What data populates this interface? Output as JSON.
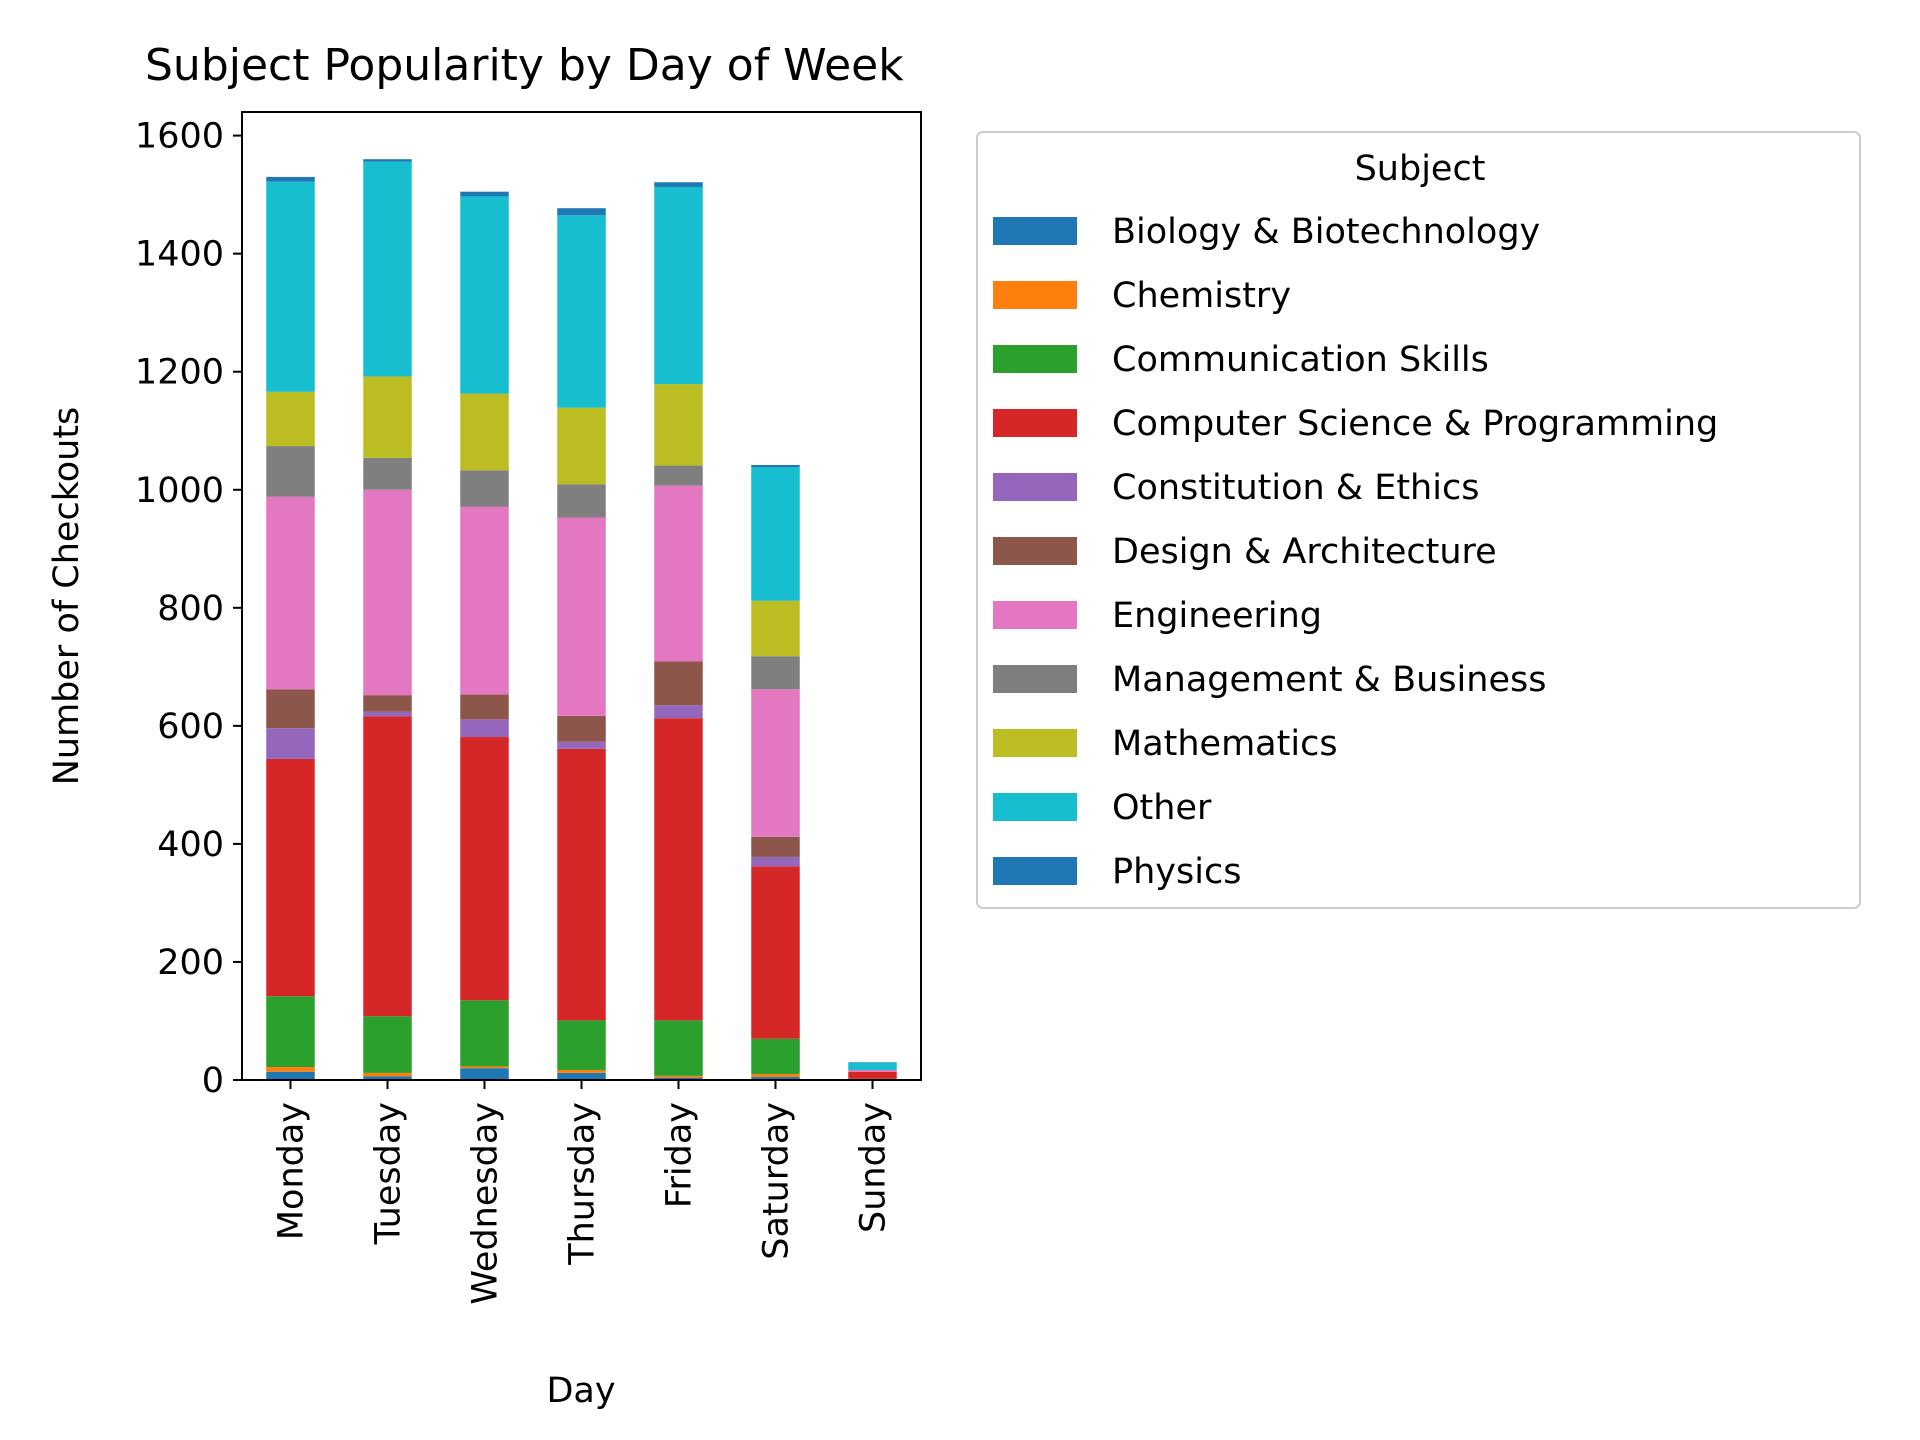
{
  "chart_data": {
    "type": "bar",
    "stacked": true,
    "title": "Subject Popularity by Day of Week",
    "xlabel": "Day",
    "ylabel": "Number of Checkouts",
    "ylim": [
      0,
      1640
    ],
    "yticks": [
      0,
      200,
      400,
      600,
      800,
      1000,
      1200,
      1400,
      1600
    ],
    "grid": false,
    "legend": {
      "title": "Subject",
      "placement": "outside-right"
    },
    "categories": [
      "Monday",
      "Tuesday",
      "Wednesday",
      "Thursday",
      "Friday",
      "Saturday",
      "Sunday"
    ],
    "series": [
      {
        "name": "Biology & Biotechnology",
        "color": "#1f77b4",
        "values": [
          14,
          6,
          20,
          12,
          4,
          5,
          1
        ]
      },
      {
        "name": "Chemistry",
        "color": "#ff7f0e",
        "values": [
          8,
          6,
          3,
          5,
          3,
          5,
          0
        ]
      },
      {
        "name": "Communication Skills",
        "color": "#2ca02c",
        "values": [
          120,
          96,
          112,
          84,
          94,
          60,
          1
        ]
      },
      {
        "name": "Computer Science & Programming",
        "color": "#d62728",
        "values": [
          402,
          508,
          446,
          460,
          512,
          292,
          12
        ]
      },
      {
        "name": "Constitution & Ethics",
        "color": "#9467bd",
        "values": [
          52,
          8,
          30,
          12,
          22,
          16,
          0
        ]
      },
      {
        "name": "Design & Architecture",
        "color": "#8c564b",
        "values": [
          66,
          28,
          42,
          44,
          74,
          34,
          0
        ]
      },
      {
        "name": "Engineering",
        "color": "#e377c2",
        "values": [
          326,
          348,
          318,
          336,
          298,
          250,
          3
        ]
      },
      {
        "name": "Management & Business",
        "color": "#7f7f7f",
        "values": [
          86,
          54,
          62,
          56,
          34,
          56,
          0
        ]
      },
      {
        "name": "Mathematics",
        "color": "#bcbd22",
        "values": [
          92,
          138,
          130,
          130,
          138,
          94,
          0
        ]
      },
      {
        "name": "Other",
        "color": "#17becf",
        "values": [
          356,
          364,
          334,
          326,
          334,
          226,
          12
        ]
      },
      {
        "name": "Physics",
        "color": "#1f77b4",
        "values": [
          8,
          4,
          8,
          12,
          8,
          4,
          1
        ]
      }
    ]
  }
}
